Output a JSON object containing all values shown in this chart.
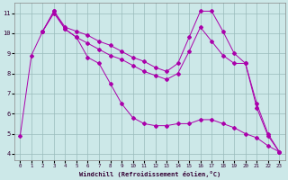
{
  "xlabel": "Windchill (Refroidissement éolien,°C)",
  "bg_color": "#cce8e8",
  "grid_color": "#99bbbb",
  "line_color": "#aa00aa",
  "xlim": [
    -0.5,
    23.5
  ],
  "ylim": [
    3.7,
    11.5
  ],
  "xticks": [
    0,
    1,
    2,
    3,
    4,
    5,
    6,
    7,
    8,
    9,
    10,
    11,
    12,
    13,
    14,
    15,
    16,
    17,
    18,
    19,
    20,
    21,
    22,
    23
  ],
  "yticks": [
    4,
    5,
    6,
    7,
    8,
    9,
    10,
    11
  ],
  "line1_x": [
    0,
    1,
    2,
    3,
    4,
    5,
    6,
    7,
    8,
    9,
    10,
    11,
    12,
    13,
    14,
    15,
    16,
    17,
    18,
    19,
    20,
    21,
    22,
    23
  ],
  "line1_y": [
    4.9,
    8.9,
    10.1,
    11.1,
    10.2,
    9.8,
    8.8,
    8.5,
    7.5,
    6.5,
    5.8,
    5.5,
    5.4,
    5.4,
    5.5,
    5.5,
    5.7,
    5.7,
    5.5,
    5.3,
    5.0,
    4.8,
    4.4,
    4.1
  ],
  "line2_x": [
    2,
    3,
    4,
    5,
    6,
    7,
    8,
    9,
    10,
    11,
    12,
    13,
    14,
    15,
    16,
    17,
    18,
    19,
    20,
    21,
    22,
    23
  ],
  "line2_y": [
    10.1,
    11.1,
    10.3,
    10.1,
    9.9,
    9.6,
    9.4,
    9.1,
    8.8,
    8.6,
    8.3,
    8.1,
    8.5,
    9.8,
    11.1,
    11.1,
    10.1,
    9.0,
    8.5,
    6.3,
    4.9,
    4.1
  ],
  "line3_x": [
    2,
    3,
    4,
    5,
    6,
    7,
    8,
    9,
    10,
    11,
    12,
    13,
    14,
    15,
    16,
    17,
    18,
    19,
    20,
    21,
    22,
    23
  ],
  "line3_y": [
    10.1,
    11.0,
    10.2,
    9.8,
    9.5,
    9.2,
    8.9,
    8.7,
    8.4,
    8.1,
    7.9,
    7.7,
    8.0,
    9.1,
    10.3,
    9.6,
    8.9,
    8.5,
    8.5,
    6.5,
    5.0,
    4.1
  ]
}
